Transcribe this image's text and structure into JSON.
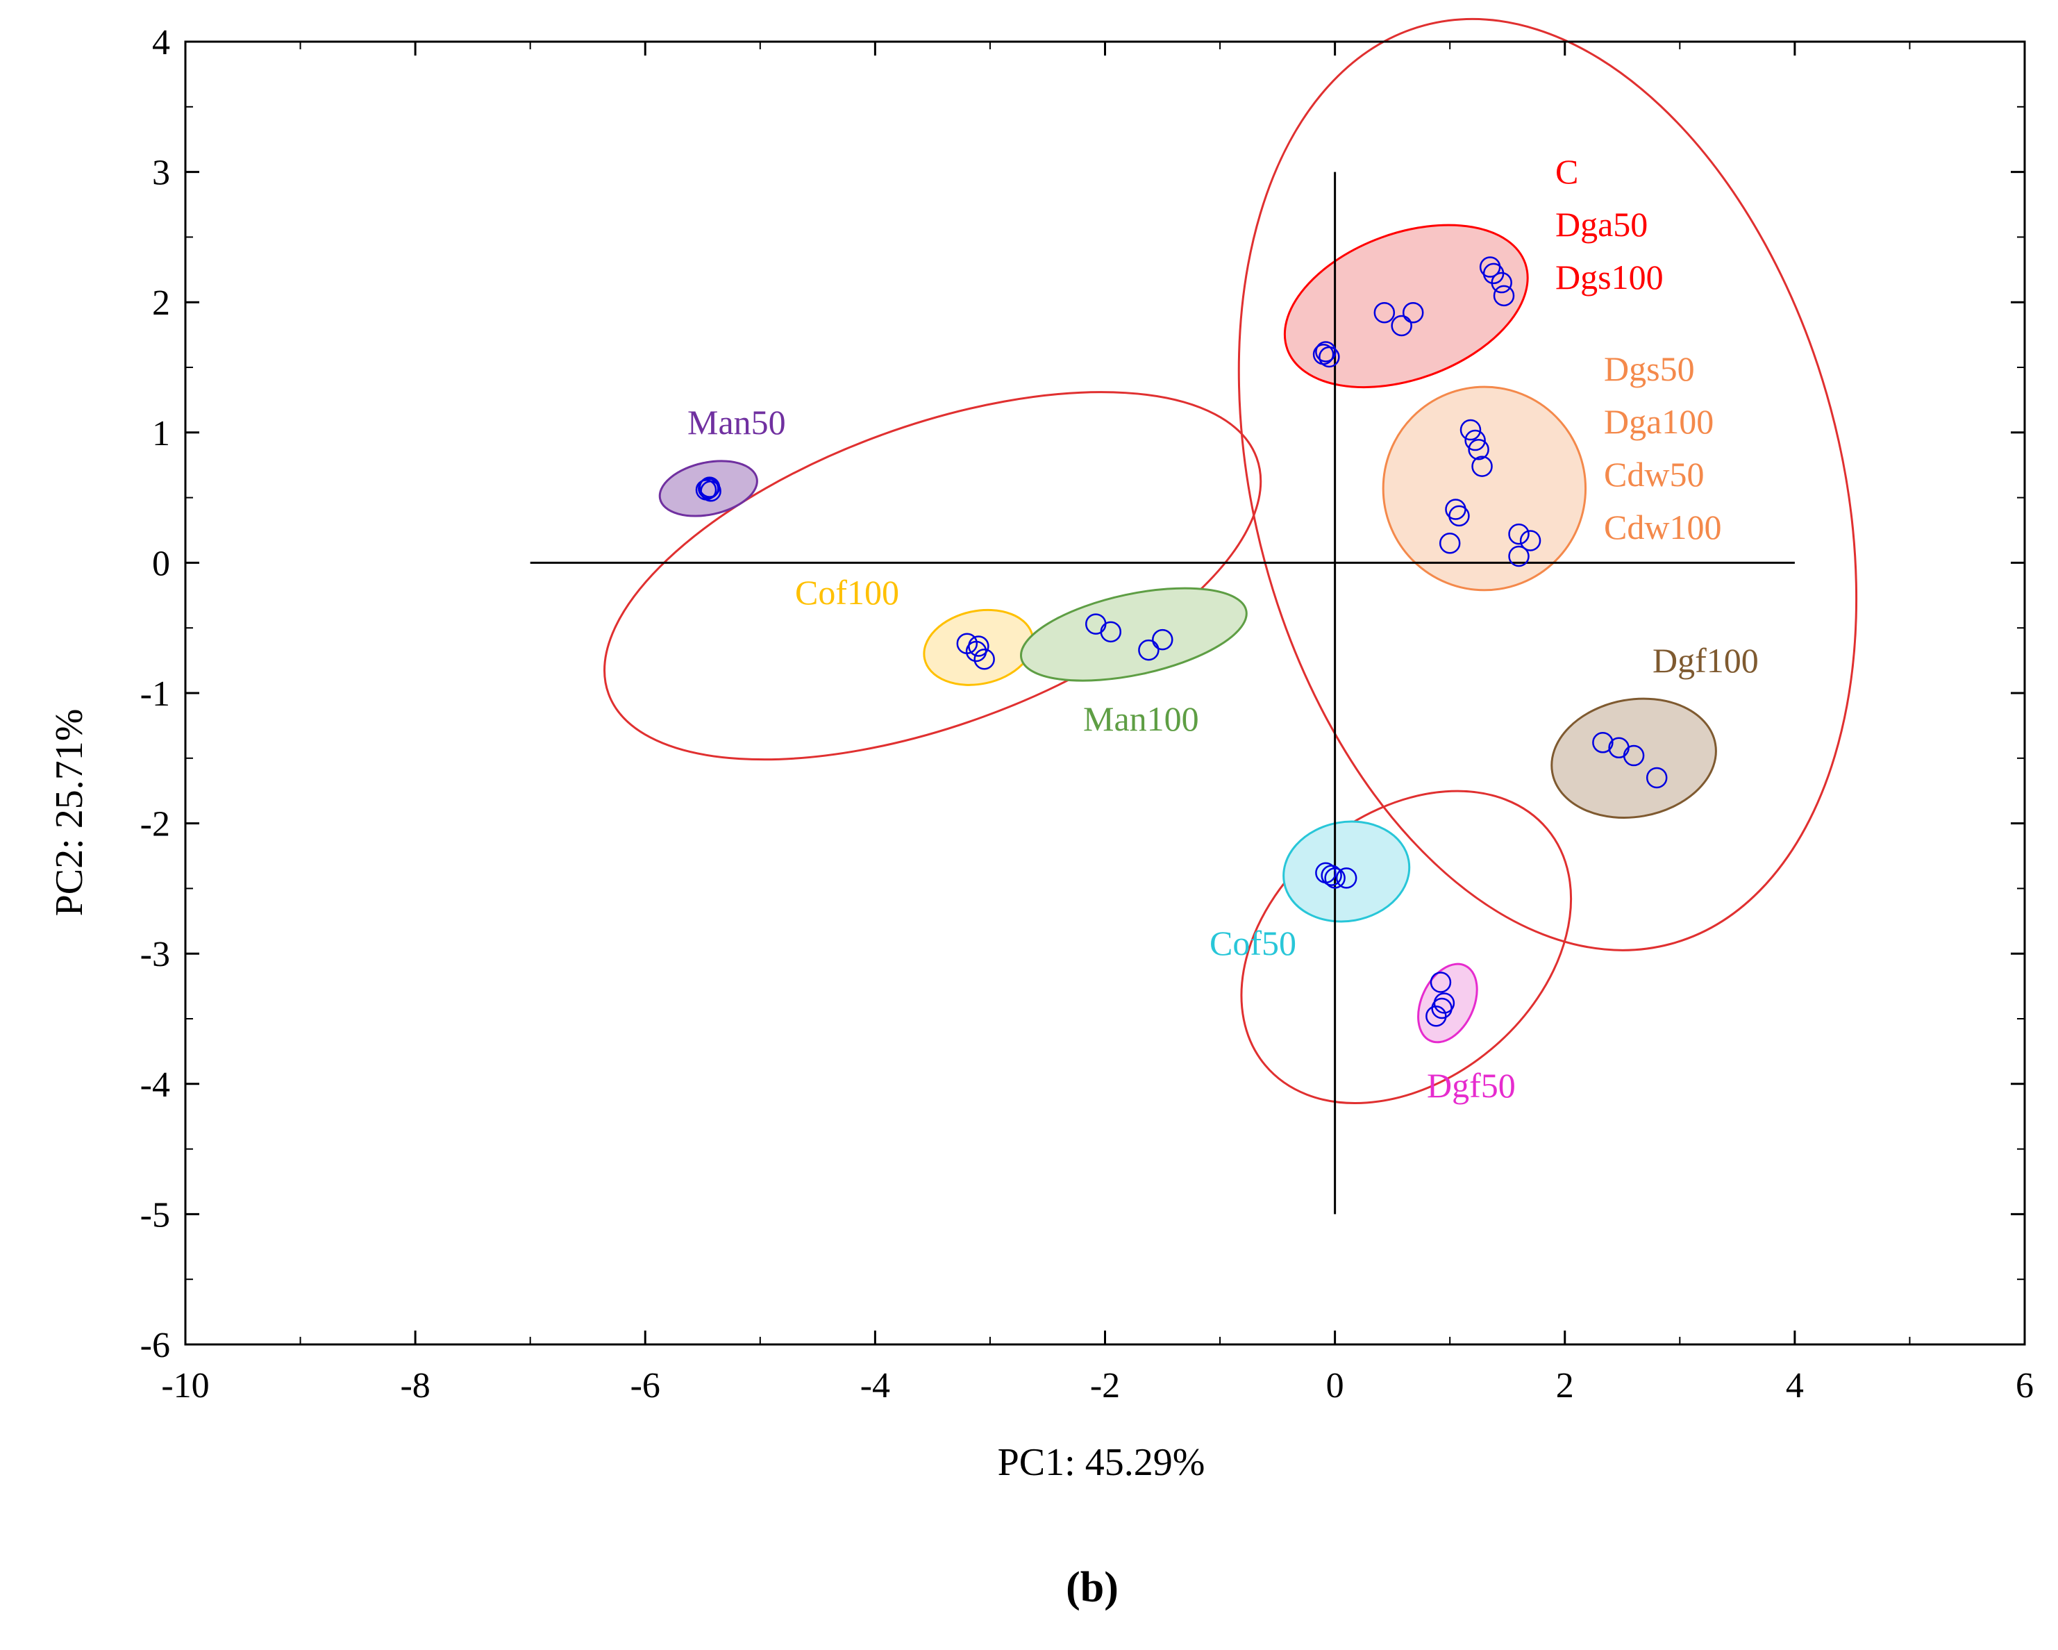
{
  "chart_data": {
    "type": "scatter",
    "title": "",
    "xlabel": "PC1: 45.29%",
    "ylabel": "PC2: 25.71%",
    "xlim": [
      -10,
      6
    ],
    "ylim": [
      -6,
      4
    ],
    "xticks": [
      "-10",
      "-8",
      "-6",
      "-4",
      "-2",
      "0",
      "2",
      "4",
      "6"
    ],
    "yticks": [
      "4",
      "3",
      "2",
      "1",
      "0",
      "-1",
      "-2",
      "-3",
      "-4",
      "-5",
      "-6"
    ],
    "reference_lines": {
      "horizontal": {
        "y": 0,
        "x_from": -7,
        "x_to": 4
      },
      "vertical": {
        "x": 0,
        "y_from": -5,
        "y_to": 3
      }
    },
    "groups": [
      {
        "key": "man50",
        "labels": [
          "Man50"
        ],
        "color": "#7030a0",
        "fill": "#c9b2d9",
        "ellipse": {
          "cx": -5.45,
          "cy": 0.57,
          "rx": 0.43,
          "ry": 0.2,
          "angle": -12
        },
        "points": [
          [
            -5.45,
            0.57
          ],
          [
            -5.43,
            0.55
          ],
          [
            -5.47,
            0.56
          ],
          [
            -5.44,
            0.58
          ]
        ]
      },
      {
        "key": "cof100",
        "labels": [
          "Cof100"
        ],
        "color": "#ffc000",
        "fill": "#ffeec4",
        "ellipse": {
          "cx": -3.1,
          "cy": -0.65,
          "rx": 0.48,
          "ry": 0.28,
          "angle": -12
        },
        "points": [
          [
            -3.2,
            -0.62
          ],
          [
            -3.12,
            -0.68
          ],
          [
            -3.1,
            -0.64
          ],
          [
            -3.05,
            -0.74
          ]
        ]
      },
      {
        "key": "man100",
        "labels": [
          "Man100"
        ],
        "color": "#5e9e44",
        "fill": "#d7e8cb",
        "ellipse": {
          "cx": -1.75,
          "cy": -0.55,
          "rx": 1.0,
          "ry": 0.31,
          "angle": -12
        },
        "points": [
          [
            -2.08,
            -0.47
          ],
          [
            -1.95,
            -0.53
          ],
          [
            -1.62,
            -0.67
          ],
          [
            -1.5,
            -0.59
          ]
        ]
      },
      {
        "key": "c_group",
        "labels": [
          "C",
          "Dga50",
          "Dgs100"
        ],
        "color": "#ff0000",
        "fill": "#f8c5c5",
        "ellipse": {
          "cx": 0.62,
          "cy": 1.97,
          "rx": 1.1,
          "ry": 0.56,
          "angle": -20
        },
        "points": [
          [
            -0.1,
            1.6
          ],
          [
            -0.08,
            1.62
          ],
          [
            -0.05,
            1.58
          ],
          [
            0.43,
            1.92
          ],
          [
            0.58,
            1.82
          ],
          [
            0.68,
            1.92
          ],
          [
            1.35,
            2.27
          ],
          [
            1.38,
            2.22
          ],
          [
            1.45,
            2.15
          ],
          [
            1.47,
            2.05
          ]
        ]
      },
      {
        "key": "dgs50_group",
        "labels": [
          "Dgs50",
          "Dga100",
          "Cdw50",
          "Cdw100"
        ],
        "color": "#f4894b",
        "fill": "#fbe0cd",
        "ellipse": {
          "cx": 1.3,
          "cy": 0.57,
          "rx": 0.88,
          "ry": 0.78,
          "angle": 0
        },
        "points": [
          [
            1.18,
            1.02
          ],
          [
            1.22,
            0.94
          ],
          [
            1.25,
            0.87
          ],
          [
            1.28,
            0.74
          ],
          [
            1.05,
            0.41
          ],
          [
            1.08,
            0.36
          ],
          [
            1.0,
            0.15
          ],
          [
            1.6,
            0.22
          ],
          [
            1.7,
            0.17
          ],
          [
            1.6,
            0.05
          ]
        ]
      },
      {
        "key": "dgf100",
        "labels": [
          "Dgf100"
        ],
        "color": "#7f5a30",
        "fill": "#ddd0c3",
        "ellipse": {
          "cx": 2.6,
          "cy": -1.5,
          "rx": 0.72,
          "ry": 0.45,
          "angle": -10
        },
        "points": [
          [
            2.33,
            -1.38
          ],
          [
            2.47,
            -1.42
          ],
          [
            2.6,
            -1.48
          ],
          [
            2.8,
            -1.65
          ]
        ]
      },
      {
        "key": "cof50",
        "labels": [
          "Cof50"
        ],
        "color": "#28c6d8",
        "fill": "#c9f0f6",
        "ellipse": {
          "cx": 0.1,
          "cy": -2.37,
          "rx": 0.55,
          "ry": 0.38,
          "angle": -10
        },
        "points": [
          [
            -0.08,
            -2.38
          ],
          [
            0.0,
            -2.42
          ],
          [
            0.1,
            -2.42
          ],
          [
            -0.03,
            -2.4
          ]
        ]
      },
      {
        "key": "dgf50",
        "labels": [
          "Dgf50"
        ],
        "color": "#e62bce",
        "fill": "#f7cdef",
        "ellipse": {
          "cx": 0.98,
          "cy": -3.38,
          "rx": 0.36,
          "ry": 0.2,
          "angle": -65
        },
        "points": [
          [
            0.92,
            -3.22
          ],
          [
            0.95,
            -3.38
          ],
          [
            0.93,
            -3.42
          ],
          [
            0.88,
            -3.48
          ]
        ]
      }
    ],
    "clusters": [
      {
        "name": "cluster-left",
        "color": "#e03030",
        "cx": -3.5,
        "cy": -0.1,
        "rx": 3.0,
        "ry": 1.15,
        "angle": -20
      },
      {
        "name": "cluster-right",
        "color": "#e03030",
        "cx": 1.85,
        "cy": 0.6,
        "rx": 2.55,
        "ry": 3.65,
        "angle": -15
      },
      {
        "name": "cluster-bottom",
        "color": "#e03030",
        "cx": 0.62,
        "cy": -2.95,
        "rx": 1.6,
        "ry": 1.02,
        "angle": -40
      }
    ],
    "point_style": {
      "color": "#0000e0",
      "marker": "open-circle"
    }
  },
  "panel_label": "(b)"
}
